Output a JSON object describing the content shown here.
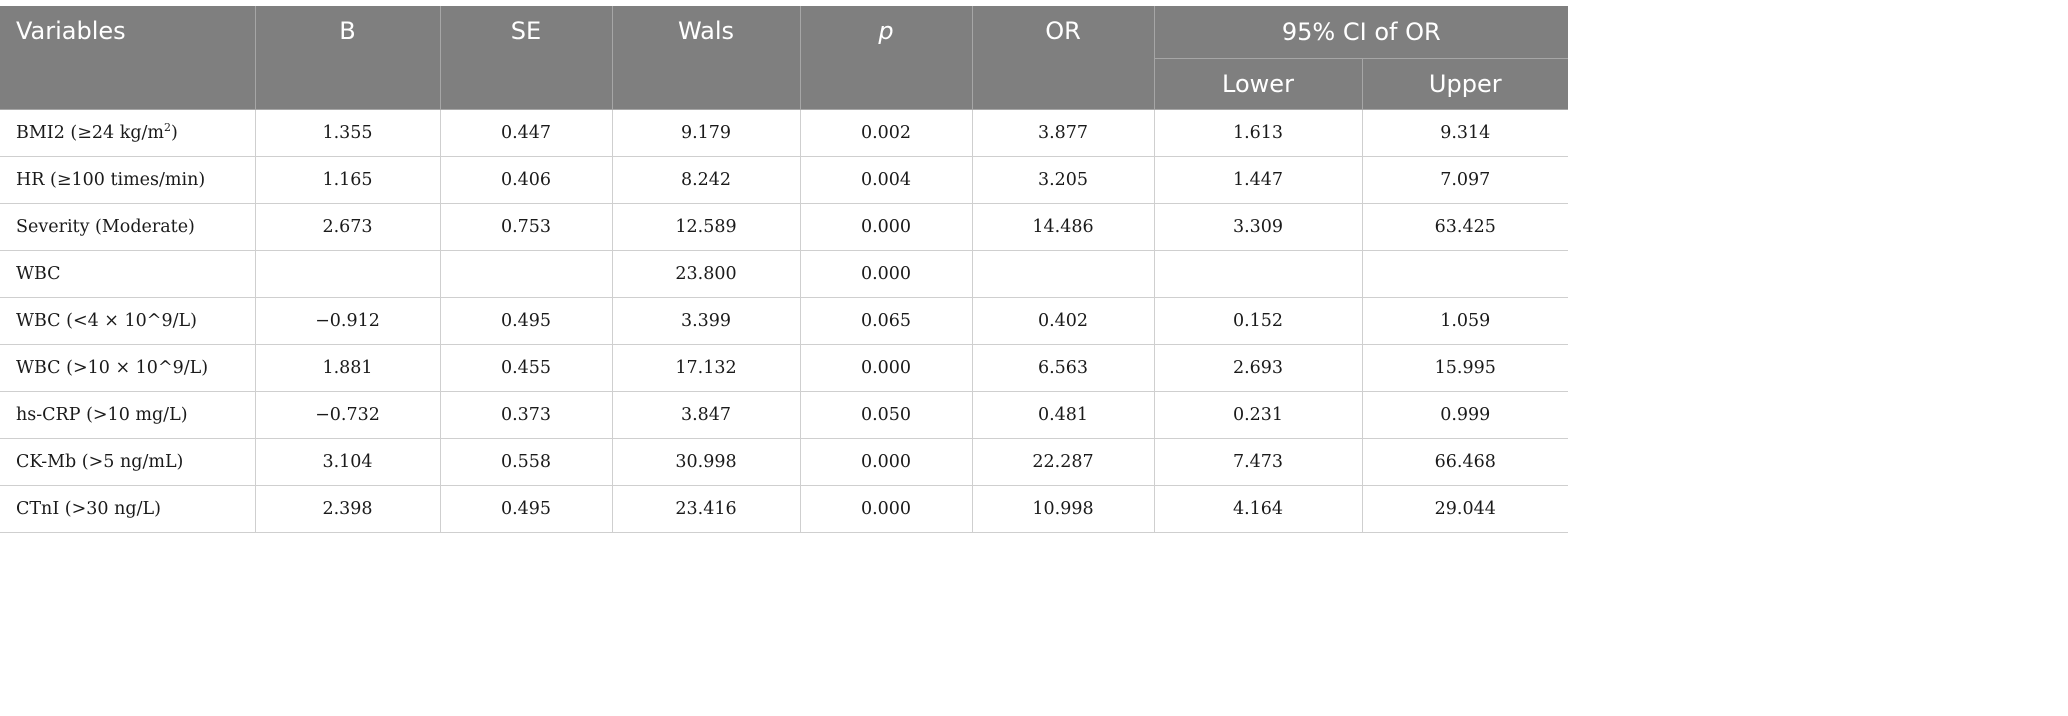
{
  "table": {
    "headers": {
      "variables": "Variables",
      "b": "B",
      "se": "SE",
      "wals": "Wals",
      "p": "p",
      "or": "OR",
      "ci": "95% CI of OR",
      "lower": "Lower",
      "upper": "Upper"
    },
    "rows": [
      {
        "variable": "BMI2 (≥24 kg/m",
        "variable_sup": "2",
        "variable_suffix": ")",
        "b": "1.355",
        "se": "0.447",
        "wals": "9.179",
        "p": "0.002",
        "or": "3.877",
        "lower": "1.613",
        "upper": "9.314"
      },
      {
        "variable": "HR (≥100 times/min)",
        "b": "1.165",
        "se": "0.406",
        "wals": "8.242",
        "p": "0.004",
        "or": "3.205",
        "lower": "1.447",
        "upper": "7.097"
      },
      {
        "variable": "Severity (Moderate)",
        "b": "2.673",
        "se": "0.753",
        "wals": "12.589",
        "p": "0.000",
        "or": "14.486",
        "lower": "3.309",
        "upper": "63.425"
      },
      {
        "variable": "WBC",
        "b": "",
        "se": "",
        "wals": "23.800",
        "p": "0.000",
        "or": "",
        "lower": "",
        "upper": ""
      },
      {
        "variable": "WBC (<4 × 10^9/L)",
        "b": "−0.912",
        "se": "0.495",
        "wals": "3.399",
        "p": "0.065",
        "or": "0.402",
        "lower": "0.152",
        "upper": "1.059"
      },
      {
        "variable": "WBC (>10 × 10^9/L)",
        "b": "1.881",
        "se": "0.455",
        "wals": "17.132",
        "p": "0.000",
        "or": "6.563",
        "lower": "2.693",
        "upper": "15.995"
      },
      {
        "variable": "hs-CRP (>10 mg/L)",
        "b": "−0.732",
        "se": "0.373",
        "wals": "3.847",
        "p": "0.050",
        "or": "0.481",
        "lower": "0.231",
        "upper": "0.999"
      },
      {
        "variable": "CK-Mb (>5 ng/mL)",
        "b": "3.104",
        "se": "0.558",
        "wals": "30.998",
        "p": "0.000",
        "or": "22.287",
        "lower": "7.473",
        "upper": "66.468"
      },
      {
        "variable": "CTnI (>30 ng/L)",
        "b": "2.398",
        "se": "0.495",
        "wals": "23.416",
        "p": "0.000",
        "or": "10.998",
        "lower": "4.164",
        "upper": "29.044"
      }
    ]
  }
}
